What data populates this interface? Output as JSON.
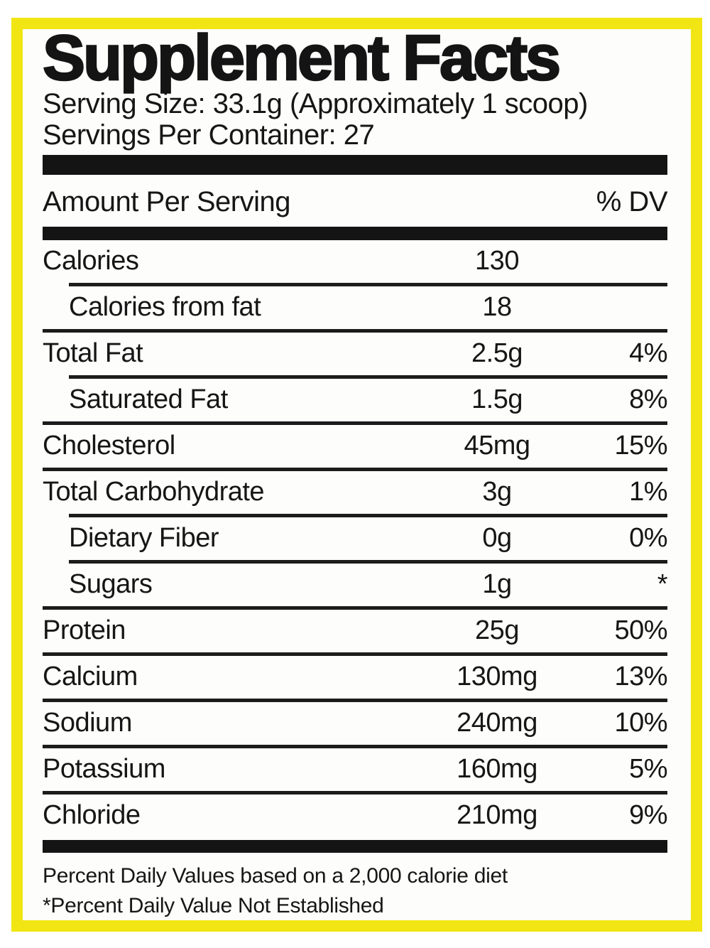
{
  "label": {
    "title": "Supplement Facts",
    "serving_size": "Serving Size: 33.1g (Approximately 1 scoop)",
    "servings_per_container": "Servings Per Container: 27",
    "columns": {
      "amount_header": "Amount Per Serving",
      "dv_header": "% DV"
    },
    "rows": [
      {
        "name": "Calories",
        "amount": "130",
        "dv": "",
        "indent": false
      },
      {
        "name": "Calories from fat",
        "amount": "18",
        "dv": "",
        "indent": true
      },
      {
        "name": "Total Fat",
        "amount": "2.5g",
        "dv": "4%",
        "indent": false
      },
      {
        "name": "Saturated Fat",
        "amount": "1.5g",
        "dv": "8%",
        "indent": true
      },
      {
        "name": "Cholesterol",
        "amount": "45mg",
        "dv": "15%",
        "indent": false
      },
      {
        "name": "Total Carbohydrate",
        "amount": "3g",
        "dv": "1%",
        "indent": false
      },
      {
        "name": "Dietary Fiber",
        "amount": "0g",
        "dv": "0%",
        "indent": true
      },
      {
        "name": "Sugars",
        "amount": "1g",
        "dv": "*",
        "indent": true
      },
      {
        "name": "Protein",
        "amount": "25g",
        "dv": "50%",
        "indent": false
      },
      {
        "name": "Calcium",
        "amount": "130mg",
        "dv": "13%",
        "indent": false
      },
      {
        "name": "Sodium",
        "amount": "240mg",
        "dv": "10%",
        "indent": false
      },
      {
        "name": "Potassium",
        "amount": "160mg",
        "dv": "5%",
        "indent": false
      },
      {
        "name": "Chloride",
        "amount": "210mg",
        "dv": "9%",
        "indent": false
      }
    ],
    "footnotes": [
      "Percent Daily Values based on a 2,000 calorie diet",
      "*Percent Daily Value Not Established"
    ],
    "colors": {
      "border_yellow": "#F1E513",
      "bar_black": "#141414"
    }
  }
}
